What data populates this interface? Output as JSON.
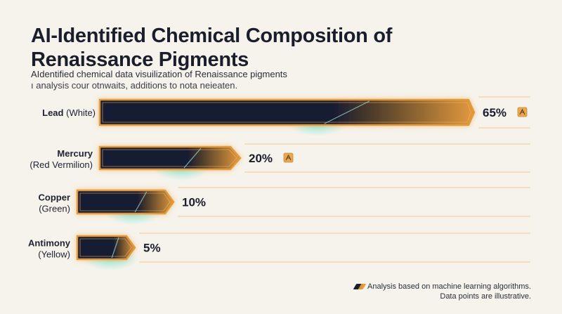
{
  "header": {
    "title": "AI-Identified Chemical Composition of Renaissance Pigments",
    "subtitle_line1": "AIdentified chemical data visuilization of Renaissance pigments",
    "subtitle_line2": "ı analysis cour otnwaits, additions to nota neieaten."
  },
  "footer": {
    "note_line1": "Analysis based on machine learning algorithms.",
    "note_line2": "Data points are illustrative."
  },
  "colors": {
    "bar_dark": "#161a33",
    "bar_accent": "#e39a3c",
    "glow_teal": "#3fd6c0",
    "background": "#f6f3ec"
  },
  "chart_data": {
    "type": "bar",
    "orientation": "horizontal",
    "categories": [
      "Lead",
      "Mercury",
      "Copper",
      "Antimony"
    ],
    "category_details": [
      "(White)",
      "(Red Vermilion)",
      "(Green)",
      "(Yellow)"
    ],
    "values": [
      65,
      20,
      10,
      5
    ],
    "value_labels": [
      "65%",
      "20%",
      "10%",
      "5%"
    ],
    "value_suffix": "%",
    "flagged": [
      true,
      true,
      false,
      false
    ],
    "flag_icon": "ai-sparkle-icon",
    "title": "AI-Identified Chemical Composition of Renaissance Pigments",
    "xlabel": "",
    "ylabel": "",
    "grid": false,
    "legend": "none"
  }
}
